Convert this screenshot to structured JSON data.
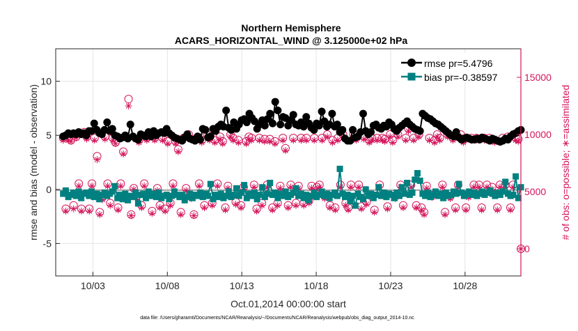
{
  "chart_data": {
    "type": "line",
    "title": "Northern Hemisphere",
    "subtitle": "ACARS_HORIZONTAL_WIND @ 3.125000e+02 hPa",
    "xlabel": "Oct.01,2014 00:00:00 start",
    "ylabel_left": "rmse and bias (model - observation)",
    "ylabel_right": "# of obs: o=possible; ∗=assimilated",
    "footer": "data file: /Users/gharamti/Documents/NCAR/Reanalysis/~/Documents/NCAR/Reanalysis/webpub/obs_diag_output_2014-10.nc",
    "x_ticks": [
      "10/03",
      "10/08",
      "10/13",
      "10/18",
      "10/23",
      "10/28"
    ],
    "x_tick_days": [
      3,
      8,
      13,
      18,
      23,
      28
    ],
    "xlim": [
      0.5,
      31.75
    ],
    "left_ticks": [
      "-5",
      "0",
      "5",
      "10"
    ],
    "left_tick_values": [
      -5,
      0,
      5,
      10
    ],
    "ylim_left": [
      -8,
      13
    ],
    "right_ticks": [
      "0",
      "5000",
      "10000",
      "15000"
    ],
    "right_tick_values": [
      0,
      5000,
      10000,
      15000
    ],
    "ylim_right": [
      -2375,
      17500
    ],
    "grid": true,
    "legend_position": "top-right",
    "colors": {
      "rmse": "#000000",
      "bias": "#008080",
      "obs": "#d4145a",
      "zero_line": "#a8a8a8",
      "grid": "#e4e4e4"
    },
    "series": [
      {
        "name": "rmse",
        "legend": "rmse pr=5.4796",
        "marker": "circle",
        "values": [
          4.9,
          5.0,
          5.2,
          5.1,
          5.2,
          5.1,
          5.3,
          5.1,
          5.2,
          5.0,
          5.4,
          5.4,
          6.1,
          5.5,
          5.2,
          5.1,
          5.5,
          6.2,
          5.4,
          5.6,
          5.0,
          4.9,
          4.7,
          4.8,
          5.0,
          4.7,
          6.0,
          4.9,
          4.7,
          4.6,
          5.1,
          5.0,
          4.9,
          5.3,
          4.9,
          5.4,
          5.0,
          5.2,
          5.3,
          5.2,
          5.6,
          5.2,
          5.0,
          4.8,
          4.7,
          4.6,
          4.5,
          4.8,
          5.1,
          4.7,
          4.6,
          4.5,
          4.9,
          4.6,
          5.6,
          5.5,
          4.8,
          4.9,
          5.6,
          5.4,
          5.8,
          6.0,
          5.8,
          7.3,
          5.7,
          5.5,
          6.2,
          5.6,
          6.0,
          6.4,
          6.5,
          6.2,
          7.0,
          6.6,
          6.3,
          5.6,
          6.0,
          6.4,
          5.9,
          6.5,
          7.0,
          6.1,
          8.1,
          7.3,
          6.0,
          6.7,
          6.6,
          5.9,
          6.4,
          6.9,
          6.0,
          5.9,
          6.2,
          5.8,
          6.7,
          6.1,
          5.7,
          5.5,
          6.1,
          5.9,
          7.2,
          6.3,
          5.8,
          6.0,
          7.0,
          5.8,
          6.0,
          5.3,
          5.5,
          4.7,
          4.5,
          4.5,
          5.5,
          4.8,
          4.9,
          5.3,
          7.0,
          5.4,
          5.1,
          5.3,
          5.9,
          6.0,
          5.7,
          5.6,
          5.9,
          5.8,
          6.2,
          6.0,
          5.6,
          5.4,
          5.7,
          5.9,
          6.1,
          6.3,
          6.0,
          5.8,
          5.6,
          5.5,
          5.4,
          7.0,
          6.8,
          6.6,
          6.5,
          6.3,
          6.1,
          6.0,
          5.8,
          5.6,
          5.4,
          5.2,
          5.0,
          4.9,
          5.3,
          4.8,
          4.6,
          4.7,
          4.8,
          4.7,
          4.6,
          4.6,
          4.7,
          4.6,
          4.8,
          4.7,
          4.6,
          4.5,
          4.7,
          4.6,
          4.5,
          4.4,
          4.5,
          4.7,
          4.6,
          4.9,
          5.1,
          5.2,
          5.4,
          5.5
        ]
      },
      {
        "name": "bias",
        "legend": "bias pr=-0.38597",
        "marker": "square",
        "values": [
          -0.4,
          -0.1,
          -0.7,
          -0.5,
          -0.3,
          -0.6,
          -0.2,
          -0.8,
          -0.4,
          -0.3,
          -0.6,
          -0.2,
          -0.7,
          -0.4,
          -0.9,
          -0.5,
          -0.3,
          -0.6,
          -0.4,
          -0.2,
          0.3,
          -0.8,
          -0.5,
          -0.9,
          -0.4,
          -1.0,
          -0.6,
          -0.7,
          -0.3,
          -1.3,
          -0.5,
          -0.4,
          -0.8,
          -0.2,
          -0.6,
          -0.4,
          -0.7,
          -0.3,
          -0.8,
          -0.6,
          -0.5,
          -0.9,
          -0.6,
          -0.2,
          -0.5,
          -0.7,
          -0.5,
          -1.0,
          -0.7,
          -0.4,
          -0.8,
          -0.5,
          -0.6,
          -0.3,
          -0.7,
          -0.4,
          -0.6,
          0.5,
          -0.9,
          -0.5,
          -0.7,
          -0.4,
          -0.8,
          -0.6,
          -0.2,
          -0.7,
          -0.5,
          0.1,
          -0.6,
          -0.3,
          0.4,
          -0.8,
          -0.4,
          -0.6,
          -0.3,
          -0.9,
          -0.5,
          0.2,
          -0.7,
          -0.4,
          0.6,
          -0.5,
          -0.3,
          -0.8,
          -0.4,
          -0.6,
          -0.2,
          -0.7,
          -0.5,
          -0.3,
          0.1,
          -0.6,
          -0.4,
          -0.8,
          -0.5,
          -1.0,
          -0.6,
          -0.3,
          -0.7,
          -0.5,
          -0.2,
          -0.6,
          -0.4,
          -0.8,
          -0.5,
          -0.3,
          -0.6,
          1.9,
          -0.4,
          -0.7,
          -0.5,
          -1.1,
          -0.6,
          -1.5,
          -0.4,
          -0.7,
          -0.9,
          0.0,
          -0.6,
          -0.4,
          -0.8,
          -0.5,
          0.2,
          -0.6,
          -0.3,
          -0.7,
          -0.4,
          -0.5,
          -0.8,
          -0.3,
          -0.6,
          0.2,
          -0.4,
          0.6,
          -0.5,
          -0.3,
          0.9,
          1.5,
          0.8,
          -0.4,
          -0.6,
          -0.3,
          -0.7,
          -0.5,
          -0.2,
          -0.6,
          -0.4,
          -0.8,
          -0.3,
          -0.6,
          -0.5,
          -0.2,
          -0.4,
          0.5,
          -0.3,
          -0.6,
          -0.4,
          -0.2,
          -0.5,
          -0.3,
          -0.6,
          -0.4,
          -0.2,
          -0.5,
          -0.3,
          -0.1,
          -0.4,
          -0.6,
          -0.3,
          -0.5,
          -0.2,
          0.7,
          -0.4,
          -0.6,
          -0.5,
          1.2,
          -0.8,
          0.2
        ]
      },
      {
        "name": "obs possible",
        "marker": "open-circle",
        "axis": "right",
        "values": [
          9700,
          3500,
          9700,
          9500,
          3800,
          9800,
          5700,
          3500,
          10200,
          9800,
          3500,
          5700,
          9700,
          8100,
          3200,
          4500,
          9800,
          5700,
          4000,
          9700,
          9300,
          3600,
          5700,
          8500,
          9800,
          13100,
          3000,
          5300,
          4600,
          9500,
          3800,
          5700,
          9700,
          10000,
          3300,
          9700,
          5300,
          3800,
          9700,
          3500,
          9400,
          4000,
          5700,
          9400,
          8700,
          3200,
          9700,
          5300,
          10000,
          4600,
          3000,
          9700,
          5700,
          9500,
          3800,
          10000,
          9700,
          4000,
          9500,
          5700,
          9800,
          9400,
          3600,
          5500,
          10000,
          9700,
          4100,
          9500,
          3800,
          5400,
          9400,
          9800,
          9700,
          5600,
          3500,
          9700,
          4000,
          9600,
          5600,
          9600,
          3600,
          9400,
          4000,
          5500,
          9700,
          8800,
          3800,
          5600,
          9700,
          4000,
          5500,
          9700,
          4000,
          9700,
          4200,
          5500,
          9700,
          5400,
          5600,
          9700,
          4600,
          10000,
          3800,
          9500,
          3600,
          9700,
          5600,
          10000,
          4000,
          3600,
          5600,
          10000,
          9700,
          5600,
          3700,
          9800,
          4100,
          9500,
          9700,
          3400,
          9700,
          5600,
          9700,
          9600,
          3700,
          10000,
          9500,
          4600,
          10000,
          5600,
          3800,
          9700,
          10500,
          5600,
          9700,
          3800,
          10000,
          3600,
          3200,
          5500,
          9700,
          4700,
          9500,
          10000,
          9700,
          5600,
          3200,
          10000,
          4600,
          9700,
          3600,
          5600,
          10000,
          9500,
          3600,
          4700,
          9700,
          5600,
          9700,
          5600,
          3600,
          9700,
          5600,
          9700,
          5400,
          9500,
          3600,
          5600,
          9700,
          5600,
          9800,
          3600,
          5600,
          9700,
          9600,
          0
        ]
      },
      {
        "name": "obs assimilated",
        "marker": "asterisk",
        "axis": "right",
        "values": [
          9500,
          3300,
          9500,
          9400,
          3500,
          9700,
          5500,
          3300,
          10000,
          9600,
          3300,
          5500,
          9500,
          7800,
          3000,
          4300,
          9600,
          5500,
          3800,
          9500,
          9200,
          3400,
          5500,
          8300,
          9700,
          12500,
          2900,
          5200,
          4500,
          9300,
          3600,
          5500,
          9500,
          9800,
          3100,
          9500,
          5100,
          3600,
          9500,
          3300,
          9200,
          3800,
          5500,
          9200,
          8500,
          3000,
          9500,
          5100,
          9800,
          4400,
          2900,
          9500,
          5500,
          9300,
          3600,
          9800,
          9500,
          3800,
          9300,
          5500,
          9600,
          9200,
          3400,
          5300,
          9800,
          9500,
          3900,
          9300,
          3600,
          5200,
          9200,
          9600,
          9500,
          5400,
          3300,
          9500,
          3800,
          9400,
          5400,
          9400,
          3400,
          9200,
          3800,
          5300,
          9500,
          8600,
          3600,
          5400,
          9500,
          3800,
          5300,
          9500,
          3800,
          9500,
          4000,
          5300,
          9500,
          5200,
          5400,
          9500,
          4400,
          9800,
          3600,
          9300,
          3400,
          9500,
          5400,
          9800,
          3800,
          3400,
          5400,
          9800,
          9500,
          5400,
          3500,
          9600,
          3900,
          9300,
          9500,
          3200,
          9500,
          5400,
          9500,
          9400,
          3500,
          9800,
          9300,
          4400,
          9800,
          5400,
          3600,
          9500,
          10300,
          5400,
          9500,
          3600,
          9800,
          3400,
          3000,
          5300,
          9500,
          4500,
          9300,
          9800,
          9500,
          5400,
          3000,
          9800,
          4400,
          9500,
          3400,
          5400,
          9800,
          9300,
          3400,
          4500,
          9500,
          5400,
          9500,
          5400,
          3400,
          9500,
          5400,
          9500,
          5200,
          9300,
          3400,
          5400,
          9500,
          5400,
          9600,
          3400,
          5400,
          9500,
          9400,
          0
        ]
      }
    ]
  }
}
